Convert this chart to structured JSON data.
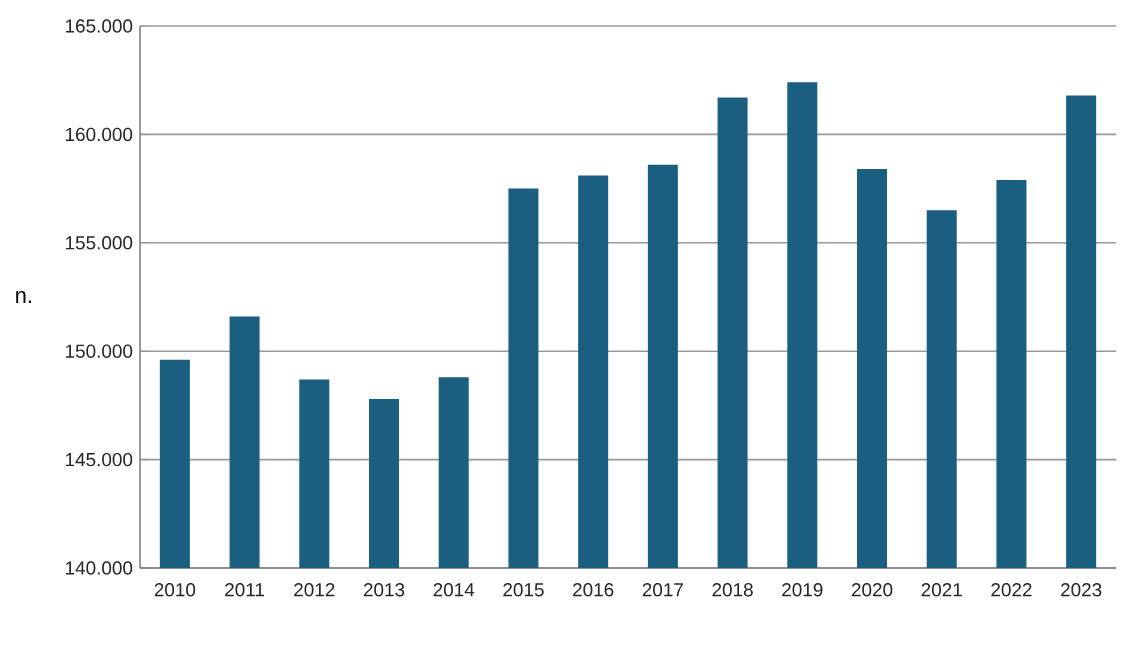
{
  "chart_data": {
    "type": "bar",
    "ylabel": "n.",
    "categories": [
      "2010",
      "2011",
      "2012",
      "2013",
      "2014",
      "2015",
      "2016",
      "2017",
      "2018",
      "2019",
      "2020",
      "2021",
      "2022",
      "2023"
    ],
    "values": [
      149600,
      151600,
      148700,
      147800,
      148800,
      157500,
      158100,
      158600,
      161700,
      162400,
      158400,
      156500,
      157900,
      161800
    ],
    "color": "#1a5e80",
    "ylim": [
      140000,
      165000
    ],
    "yticks": [
      {
        "value": 140000,
        "label": "140.000"
      },
      {
        "value": 145000,
        "label": "145.000"
      },
      {
        "value": 150000,
        "label": "150.000"
      },
      {
        "value": 155000,
        "label": "155.000"
      },
      {
        "value": 160000,
        "label": "160.000"
      },
      {
        "value": 165000,
        "label": "165.000"
      }
    ],
    "grid": "y"
  }
}
